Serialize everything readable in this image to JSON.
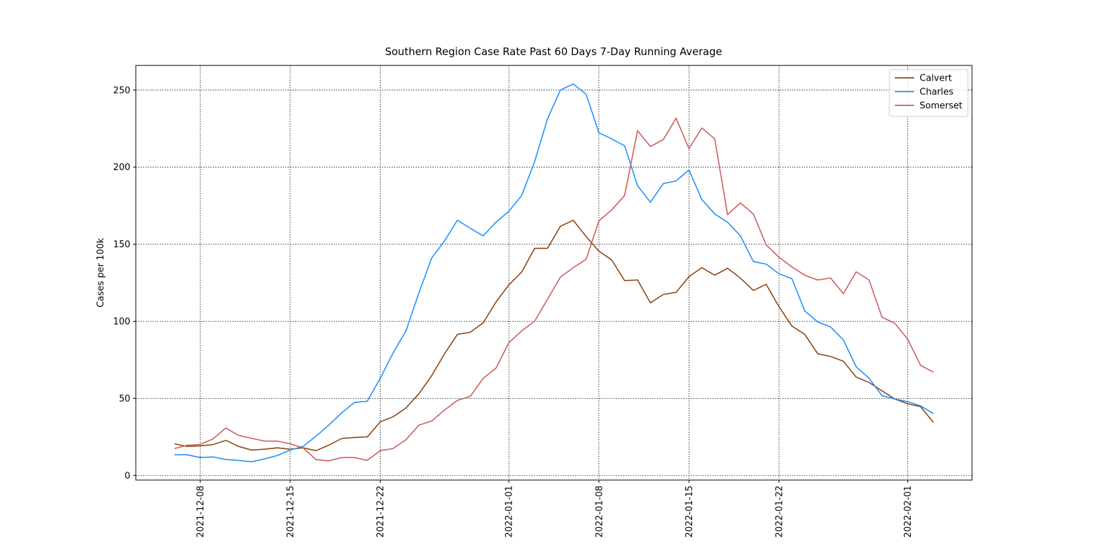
{
  "chart_data": {
    "type": "line",
    "title": "Southern Region Case Rate  Past 60 Days 7-Day Running Average",
    "ylabel": "Cases per 100k",
    "x": [
      "2021-12-06",
      "2021-12-07",
      "2021-12-08",
      "2021-12-09",
      "2021-12-10",
      "2021-12-11",
      "2021-12-12",
      "2021-12-13",
      "2021-12-14",
      "2021-12-15",
      "2021-12-16",
      "2021-12-17",
      "2021-12-18",
      "2021-12-19",
      "2021-12-20",
      "2021-12-21",
      "2021-12-22",
      "2021-12-23",
      "2021-12-24",
      "2021-12-25",
      "2021-12-26",
      "2021-12-27",
      "2021-12-28",
      "2021-12-29",
      "2021-12-30",
      "2021-12-31",
      "2022-01-01",
      "2022-01-02",
      "2022-01-03",
      "2022-01-04",
      "2022-01-05",
      "2022-01-06",
      "2022-01-07",
      "2022-01-08",
      "2022-01-09",
      "2022-01-10",
      "2022-01-11",
      "2022-01-12",
      "2022-01-13",
      "2022-01-14",
      "2022-01-15",
      "2022-01-16",
      "2022-01-17",
      "2022-01-18",
      "2022-01-19",
      "2022-01-20",
      "2022-01-21",
      "2022-01-22",
      "2022-01-23",
      "2022-01-24",
      "2022-01-25",
      "2022-01-26",
      "2022-01-27",
      "2022-01-28",
      "2022-01-29",
      "2022-01-30",
      "2022-01-31",
      "2022-02-01",
      "2022-02-02",
      "2022-02-03"
    ],
    "series": [
      {
        "name": "Calvert",
        "color": "#8b4513",
        "values": [
          20.5,
          18.8,
          19.2,
          20,
          22.8,
          18.8,
          16.5,
          17,
          17.9,
          17,
          17.9,
          16.1,
          19.6,
          24,
          24.6,
          25,
          34.8,
          38,
          43.8,
          53,
          64.7,
          79,
          91.5,
          92.9,
          99,
          112.5,
          123.7,
          132,
          147.3,
          147.3,
          161.6,
          165.6,
          155,
          145.5,
          139.7,
          126.3,
          126.8,
          112,
          117.4,
          118.8,
          129,
          134.8,
          129.9,
          134.4,
          128,
          120,
          124,
          109.4,
          96.9,
          91.5,
          79,
          77.2,
          74.1,
          63.8,
          60.3,
          54.9,
          49.6,
          46.4,
          44.6,
          34.4
        ]
      },
      {
        "name": "Charles",
        "color": "#1e90ff",
        "values": [
          13.4,
          13.4,
          11.6,
          12,
          10.3,
          9.8,
          8.9,
          10.7,
          12.9,
          16.5,
          18.8,
          25.4,
          32.6,
          40.6,
          47.3,
          48.2,
          63,
          79.5,
          93.8,
          118.3,
          141,
          152.2,
          165.6,
          160.3,
          155.4,
          164.3,
          171.4,
          181.7,
          203.6,
          231.3,
          250,
          254,
          247.3,
          222.3,
          218.3,
          213.8,
          188,
          177.2,
          189.3,
          191.1,
          198.2,
          179,
          169.6,
          164.3,
          155.4,
          138.8,
          137.1,
          130.8,
          127.7,
          106.7,
          99.6,
          96.4,
          87.9,
          70.5,
          63,
          51.8,
          49.6,
          47.8,
          45.1,
          40.2
        ]
      },
      {
        "name": "Somerset",
        "color": "#cd5c5c",
        "values": [
          17.4,
          19.6,
          20.1,
          23.7,
          30.8,
          25.9,
          24.1,
          22.3,
          22.3,
          20.5,
          17.9,
          10.3,
          9.4,
          11.6,
          11.6,
          9.8,
          16.1,
          17.4,
          23.2,
          32.6,
          35.3,
          42.4,
          48.7,
          51.3,
          63,
          69.6,
          86.2,
          93.8,
          100,
          114.3,
          128.6,
          134.8,
          140.2,
          165.2,
          172.3,
          181.7,
          223.7,
          213.4,
          217.9,
          231.7,
          212,
          225.4,
          218.3,
          169.2,
          176.8,
          169.6,
          149.6,
          141.5,
          135.3,
          129.9,
          126.8,
          128.1,
          117.9,
          132.1,
          126.8,
          102.7,
          98.7,
          88.4,
          71.4,
          67
        ]
      }
    ],
    "xlim": [
      "2021-12-03",
      "2022-02-06"
    ],
    "xticks": [
      "2021-12-08",
      "2021-12-15",
      "2021-12-22",
      "2022-01-01",
      "2022-01-08",
      "2022-01-15",
      "2022-01-22",
      "2022-02-01"
    ],
    "ylim": [
      -3,
      266
    ],
    "yticks": [
      0,
      50,
      100,
      150,
      200,
      250
    ],
    "grid": true,
    "legend": "upper right"
  }
}
